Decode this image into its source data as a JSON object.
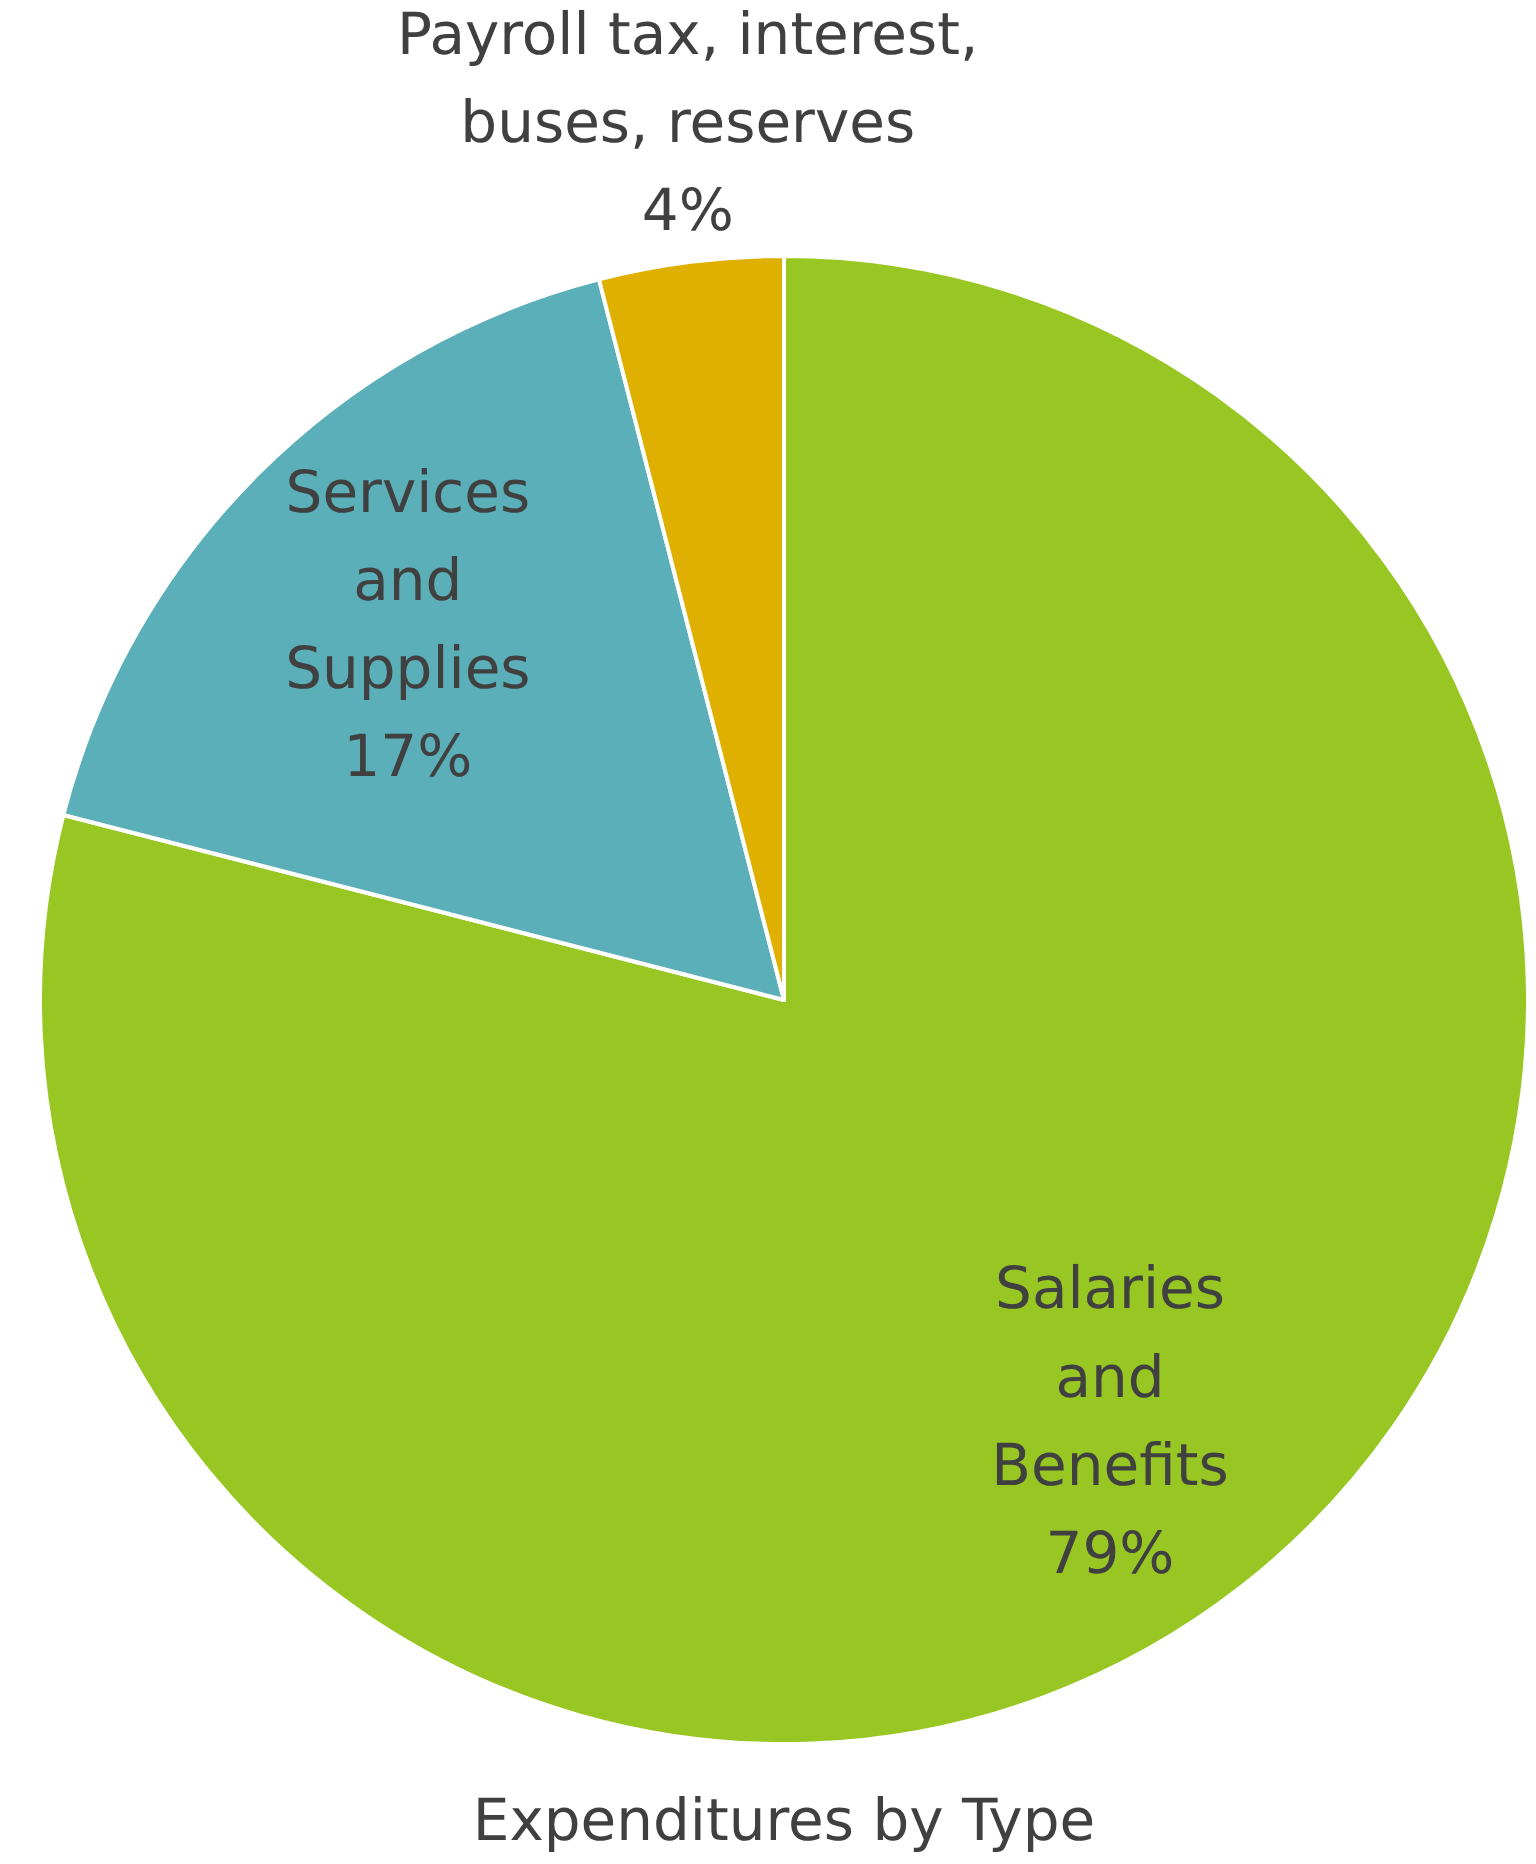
{
  "chart_data": {
    "type": "pie",
    "title": "Expenditures by Type",
    "categories": [
      "Salaries and Benefits",
      "Services and Supplies",
      "Payroll tax, interest, buses, reserves"
    ],
    "values": [
      79,
      17,
      4
    ],
    "value_labels": [
      "79%",
      "17%",
      "4%"
    ],
    "colors": [
      "#98c723",
      "#5aafb8",
      "#dfb000"
    ],
    "legend": false
  }
}
